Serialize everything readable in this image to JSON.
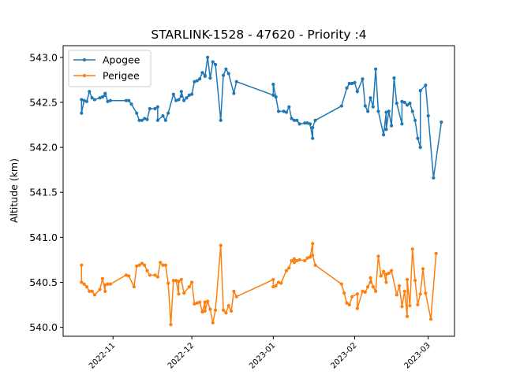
{
  "chart_data": {
    "type": "line",
    "title": "STARLINK-1528 - 47620 - Priority :4",
    "xlabel": "",
    "ylabel": "Altitude (km)",
    "ylim": [
      539.9,
      543.13
    ],
    "xlim": [
      "2022-10-13",
      "2023-03-11"
    ],
    "grid": false,
    "legend_position": "top-left",
    "yticks": [
      540.0,
      540.5,
      541.0,
      541.5,
      542.0,
      542.5,
      543.0
    ],
    "yticklabels": [
      "540.0",
      "540.5",
      "541.0",
      "541.5",
      "542.0",
      "542.5",
      "543.0"
    ],
    "xticks": [
      "2022-11-01",
      "2022-12-01",
      "2023-01-01",
      "2023-02-01",
      "2023-03-01"
    ],
    "xticklabels": [
      "2022-11",
      "2022-12",
      "2023-01",
      "2023-02",
      "2023-03"
    ],
    "series": [
      {
        "name": "Apogee",
        "color": "#1f77b4",
        "points": [
          [
            "2022-10-20",
            542.53
          ],
          [
            "2022-10-20",
            542.38
          ],
          [
            "2022-10-21",
            542.52
          ],
          [
            "2022-10-22",
            542.51
          ],
          [
            "2022-10-23",
            542.62
          ],
          [
            "2022-10-24",
            542.55
          ],
          [
            "2022-10-25",
            542.53
          ],
          [
            "2022-10-27",
            542.55
          ],
          [
            "2022-10-28",
            542.56
          ],
          [
            "2022-10-29",
            542.58
          ],
          [
            "2022-10-29",
            542.6
          ],
          [
            "2022-10-30",
            542.51
          ],
          [
            "2022-10-31",
            542.52
          ],
          [
            "2022-11-06",
            542.52
          ],
          [
            "2022-11-07",
            542.52
          ],
          [
            "2022-11-08",
            542.48
          ],
          [
            "2022-11-10",
            542.38
          ],
          [
            "2022-11-11",
            542.3
          ],
          [
            "2022-11-12",
            542.3
          ],
          [
            "2022-11-13",
            542.32
          ],
          [
            "2022-11-14",
            542.31
          ],
          [
            "2022-11-15",
            542.43
          ],
          [
            "2022-11-17",
            542.43
          ],
          [
            "2022-11-18",
            542.45
          ],
          [
            "2022-11-18",
            542.3
          ],
          [
            "2022-11-20",
            542.35
          ],
          [
            "2022-11-21",
            542.3
          ],
          [
            "2022-11-22",
            542.38
          ],
          [
            "2022-11-24",
            542.59
          ],
          [
            "2022-11-25",
            542.52
          ],
          [
            "2022-11-26",
            542.53
          ],
          [
            "2022-11-27",
            542.57
          ],
          [
            "2022-11-27",
            542.62
          ],
          [
            "2022-11-28",
            542.52
          ],
          [
            "2022-11-29",
            542.55
          ],
          [
            "2022-11-30",
            542.58
          ],
          [
            "2022-12-01",
            542.59
          ],
          [
            "2022-12-02",
            542.73
          ],
          [
            "2022-12-03",
            542.74
          ],
          [
            "2022-12-04",
            542.76
          ],
          [
            "2022-12-05",
            542.83
          ],
          [
            "2022-12-06",
            542.8
          ],
          [
            "2022-12-06",
            542.79
          ],
          [
            "2022-12-07",
            543.0
          ],
          [
            "2022-12-08",
            542.77
          ],
          [
            "2022-12-09",
            542.95
          ],
          [
            "2022-12-10",
            542.92
          ],
          [
            "2022-12-12",
            542.3
          ],
          [
            "2022-12-13",
            542.8
          ],
          [
            "2022-12-14",
            542.87
          ],
          [
            "2022-12-15",
            542.82
          ],
          [
            "2022-12-17",
            542.6
          ],
          [
            "2022-12-18",
            542.73
          ],
          [
            "2023-01-01",
            542.58
          ],
          [
            "2023-01-01",
            542.7
          ],
          [
            "2023-01-02",
            542.56
          ],
          [
            "2023-01-03",
            542.4
          ],
          [
            "2023-01-05",
            542.4
          ],
          [
            "2023-01-06",
            542.39
          ],
          [
            "2023-01-07",
            542.45
          ],
          [
            "2023-01-08",
            542.32
          ],
          [
            "2023-01-09",
            542.3
          ],
          [
            "2023-01-10",
            542.3
          ],
          [
            "2023-01-11",
            542.26
          ],
          [
            "2023-01-13",
            542.27
          ],
          [
            "2023-01-14",
            542.27
          ],
          [
            "2023-01-15",
            542.26
          ],
          [
            "2023-01-16",
            542.1
          ],
          [
            "2023-01-16",
            542.22
          ],
          [
            "2023-01-17",
            542.3
          ],
          [
            "2023-01-27",
            542.46
          ],
          [
            "2023-01-29",
            542.66
          ],
          [
            "2023-01-30",
            542.71
          ],
          [
            "2023-01-31",
            542.71
          ],
          [
            "2023-02-01",
            542.72
          ],
          [
            "2023-02-02",
            542.62
          ],
          [
            "2023-02-04",
            542.76
          ],
          [
            "2023-02-05",
            542.46
          ],
          [
            "2023-02-06",
            542.4
          ],
          [
            "2023-02-07",
            542.55
          ],
          [
            "2023-02-08",
            542.45
          ],
          [
            "2023-02-09",
            542.87
          ],
          [
            "2023-02-10",
            542.4
          ],
          [
            "2023-02-12",
            542.14
          ],
          [
            "2023-02-13",
            542.39
          ],
          [
            "2023-02-13",
            542.2
          ],
          [
            "2023-02-14",
            542.4
          ],
          [
            "2023-02-15",
            542.24
          ],
          [
            "2023-02-16",
            542.77
          ],
          [
            "2023-02-17",
            542.49
          ],
          [
            "2023-02-19",
            542.26
          ],
          [
            "2023-02-19",
            542.51
          ],
          [
            "2023-02-20",
            542.5
          ],
          [
            "2023-02-21",
            542.47
          ],
          [
            "2023-02-22",
            542.49
          ],
          [
            "2023-02-23",
            542.4
          ],
          [
            "2023-02-24",
            542.3
          ],
          [
            "2023-02-25",
            542.1
          ],
          [
            "2023-02-26",
            542.0
          ],
          [
            "2023-02-26",
            542.63
          ],
          [
            "2023-02-28",
            542.69
          ],
          [
            "2023-03-01",
            542.35
          ],
          [
            "2023-03-03",
            541.66
          ],
          [
            "2023-03-06",
            542.28
          ]
        ]
      },
      {
        "name": "Perigee",
        "color": "#ff7f0e",
        "points": [
          [
            "2022-10-20",
            540.69
          ],
          [
            "2022-10-20",
            540.5
          ],
          [
            "2022-10-21",
            540.48
          ],
          [
            "2022-10-22",
            540.45
          ],
          [
            "2022-10-23",
            540.4
          ],
          [
            "2022-10-24",
            540.4
          ],
          [
            "2022-10-25",
            540.36
          ],
          [
            "2022-10-27",
            540.42
          ],
          [
            "2022-10-28",
            540.54
          ],
          [
            "2022-10-29",
            540.4
          ],
          [
            "2022-10-29",
            540.47
          ],
          [
            "2022-10-30",
            540.48
          ],
          [
            "2022-10-31",
            540.48
          ],
          [
            "2022-11-06",
            540.58
          ],
          [
            "2022-11-07",
            540.57
          ],
          [
            "2022-11-09",
            540.45
          ],
          [
            "2022-11-10",
            540.68
          ],
          [
            "2022-11-11",
            540.69
          ],
          [
            "2022-11-12",
            540.71
          ],
          [
            "2022-11-13",
            540.69
          ],
          [
            "2022-11-14",
            540.63
          ],
          [
            "2022-11-15",
            540.58
          ],
          [
            "2022-11-17",
            540.58
          ],
          [
            "2022-11-18",
            540.56
          ],
          [
            "2022-11-19",
            540.72
          ],
          [
            "2022-11-20",
            540.69
          ],
          [
            "2022-11-21",
            540.69
          ],
          [
            "2022-11-22",
            540.49
          ],
          [
            "2022-11-23",
            540.03
          ],
          [
            "2022-11-24",
            540.52
          ],
          [
            "2022-11-25",
            540.52
          ],
          [
            "2022-11-26",
            540.37
          ],
          [
            "2022-11-26",
            540.51
          ],
          [
            "2022-11-27",
            540.53
          ],
          [
            "2022-11-28",
            540.38
          ],
          [
            "2022-11-30",
            540.45
          ],
          [
            "2022-12-01",
            540.5
          ],
          [
            "2022-12-02",
            540.26
          ],
          [
            "2022-12-03",
            540.27
          ],
          [
            "2022-12-04",
            540.28
          ],
          [
            "2022-12-05",
            540.17
          ],
          [
            "2022-12-06",
            540.28
          ],
          [
            "2022-12-06",
            540.18
          ],
          [
            "2022-12-07",
            540.29
          ],
          [
            "2022-12-08",
            540.2
          ],
          [
            "2022-12-09",
            540.05
          ],
          [
            "2022-12-10",
            540.19
          ],
          [
            "2022-12-12",
            540.91
          ],
          [
            "2022-12-13",
            540.19
          ],
          [
            "2022-12-14",
            540.16
          ],
          [
            "2022-12-15",
            540.24
          ],
          [
            "2022-12-16",
            540.18
          ],
          [
            "2022-12-17",
            540.4
          ],
          [
            "2022-12-18",
            540.34
          ],
          [
            "2023-01-01",
            540.53
          ],
          [
            "2023-01-01",
            540.45
          ],
          [
            "2023-01-02",
            540.46
          ],
          [
            "2023-01-03",
            540.5
          ],
          [
            "2023-01-04",
            540.49
          ],
          [
            "2023-01-06",
            540.63
          ],
          [
            "2023-01-07",
            540.66
          ],
          [
            "2023-01-08",
            540.74
          ],
          [
            "2023-01-09",
            540.72
          ],
          [
            "2023-01-09",
            540.76
          ],
          [
            "2023-01-10",
            540.74
          ],
          [
            "2023-01-11",
            540.75
          ],
          [
            "2023-01-13",
            540.74
          ],
          [
            "2023-01-14",
            540.77
          ],
          [
            "2023-01-15",
            540.78
          ],
          [
            "2023-01-16",
            540.93
          ],
          [
            "2023-01-16",
            540.8
          ],
          [
            "2023-01-17",
            540.69
          ],
          [
            "2023-01-27",
            540.48
          ],
          [
            "2023-01-28",
            540.38
          ],
          [
            "2023-01-29",
            540.27
          ],
          [
            "2023-01-30",
            540.25
          ],
          [
            "2023-01-31",
            540.34
          ],
          [
            "2023-02-02",
            540.37
          ],
          [
            "2023-02-02",
            540.21
          ],
          [
            "2023-02-04",
            540.4
          ],
          [
            "2023-02-05",
            540.39
          ],
          [
            "2023-02-06",
            540.45
          ],
          [
            "2023-02-07",
            540.5
          ],
          [
            "2023-02-07",
            540.55
          ],
          [
            "2023-02-08",
            540.45
          ],
          [
            "2023-02-09",
            540.4
          ],
          [
            "2023-02-10",
            540.79
          ],
          [
            "2023-02-11",
            540.57
          ],
          [
            "2023-02-12",
            540.62
          ],
          [
            "2023-02-13",
            540.5
          ],
          [
            "2023-02-13",
            540.59
          ],
          [
            "2023-02-14",
            540.6
          ],
          [
            "2023-02-15",
            540.63
          ],
          [
            "2023-02-17",
            540.36
          ],
          [
            "2023-02-18",
            540.46
          ],
          [
            "2023-02-19",
            540.23
          ],
          [
            "2023-02-20",
            540.4
          ],
          [
            "2023-02-21",
            540.12
          ],
          [
            "2023-02-21",
            540.53
          ],
          [
            "2023-02-22",
            540.24
          ],
          [
            "2023-02-23",
            540.87
          ],
          [
            "2023-02-24",
            540.52
          ],
          [
            "2023-02-25",
            540.25
          ],
          [
            "2023-02-26",
            540.37
          ],
          [
            "2023-02-27",
            540.65
          ],
          [
            "2023-02-28",
            540.38
          ],
          [
            "2023-03-02",
            540.09
          ],
          [
            "2023-03-04",
            540.82
          ]
        ]
      }
    ]
  }
}
